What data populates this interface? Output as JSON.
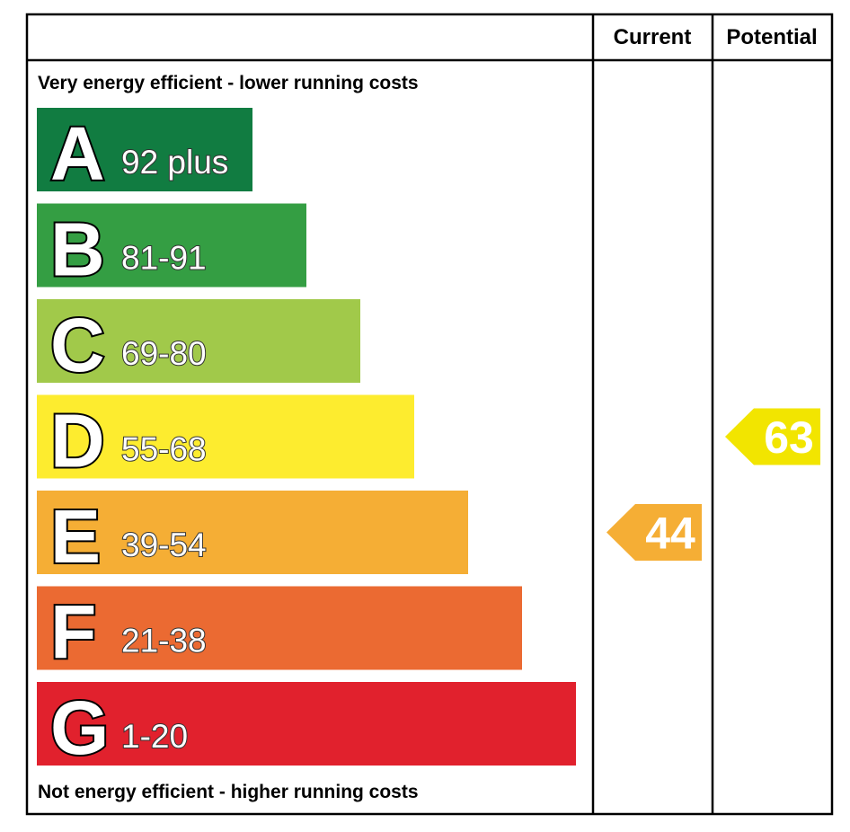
{
  "chart_data": {
    "type": "bar",
    "title": "",
    "columns": [
      "Current",
      "Potential"
    ],
    "top_caption": "Very energy efficient - lower running costs",
    "bottom_caption": "Not energy efficient - higher running costs",
    "bands": [
      {
        "letter": "A",
        "range": "92 plus",
        "color": "#117c41"
      },
      {
        "letter": "B",
        "range": "81-91",
        "color": "#349e43"
      },
      {
        "letter": "C",
        "range": "69-80",
        "color": "#a1c94a"
      },
      {
        "letter": "D",
        "range": "55-68",
        "color": "#fdec2f"
      },
      {
        "letter": "E",
        "range": "39-54",
        "color": "#f5ae35"
      },
      {
        "letter": "F",
        "range": "21-38",
        "color": "#eb6a32"
      },
      {
        "letter": "G",
        "range": "1-20",
        "color": "#e1212d"
      }
    ],
    "ratings": {
      "current": {
        "value": 44,
        "label": "44",
        "band": "E",
        "color": "#f5ae35"
      },
      "potential": {
        "value": 63,
        "label": "63",
        "band": "D",
        "color": "#f2e500"
      }
    }
  }
}
